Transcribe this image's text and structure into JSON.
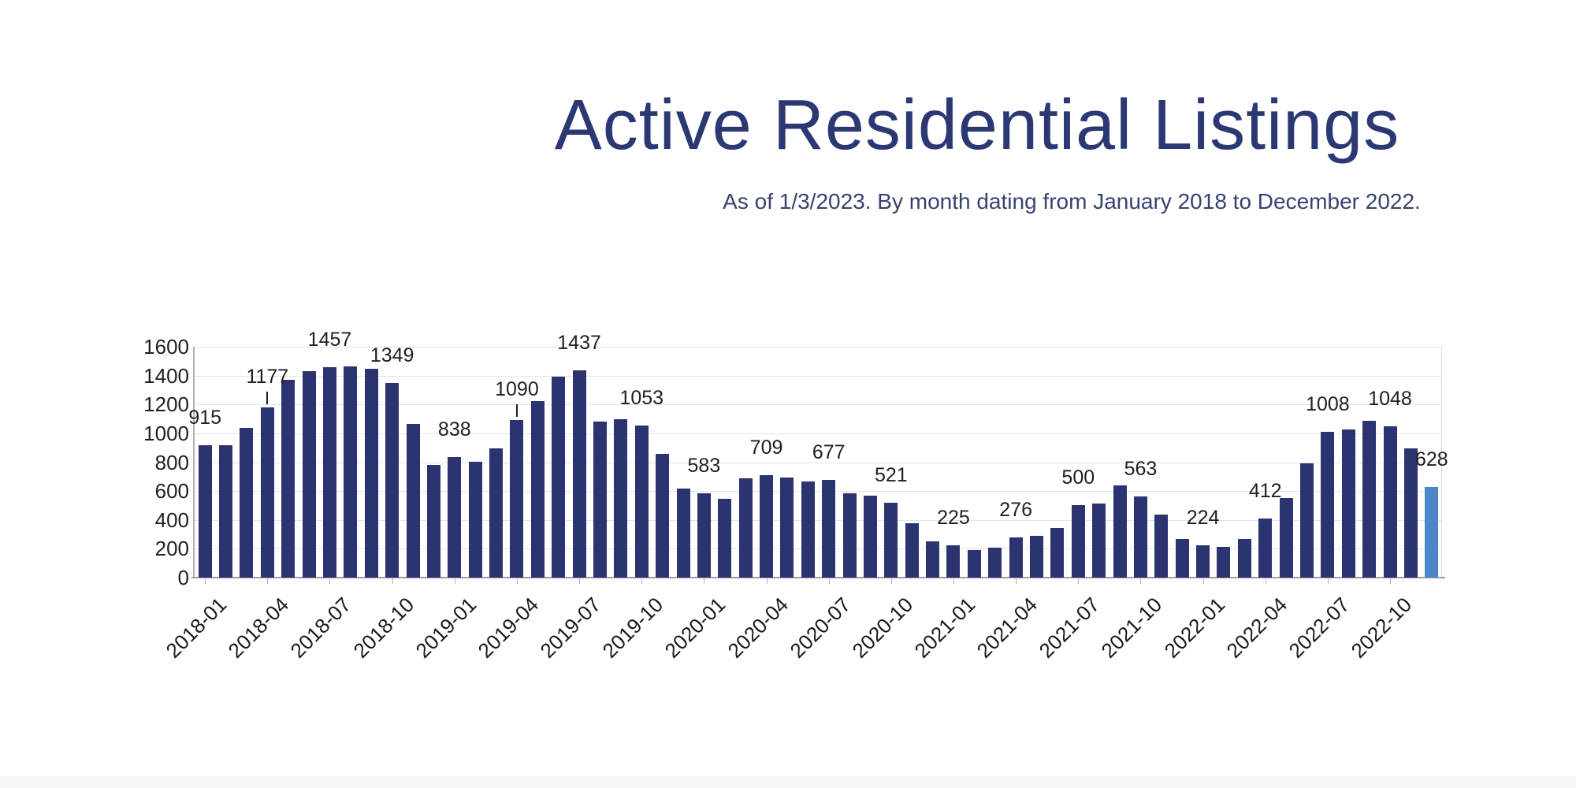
{
  "title": "Active Residential Listings",
  "subtitle": "As of 1/3/2023. By month dating from January 2018 to December 2022.",
  "chart_data": {
    "type": "bar",
    "x": [
      "2018-01",
      "2018-02",
      "2018-03",
      "2018-04",
      "2018-05",
      "2018-06",
      "2018-07",
      "2018-08",
      "2018-09",
      "2018-10",
      "2018-11",
      "2018-12",
      "2019-01",
      "2019-02",
      "2019-03",
      "2019-04",
      "2019-05",
      "2019-06",
      "2019-07",
      "2019-08",
      "2019-09",
      "2019-10",
      "2019-11",
      "2019-12",
      "2020-01",
      "2020-02",
      "2020-03",
      "2020-04",
      "2020-05",
      "2020-06",
      "2020-07",
      "2020-08",
      "2020-09",
      "2020-10",
      "2020-11",
      "2020-12",
      "2021-01",
      "2021-02",
      "2021-03",
      "2021-04",
      "2021-05",
      "2021-06",
      "2021-07",
      "2021-08",
      "2021-09",
      "2021-10",
      "2021-11",
      "2021-12",
      "2022-01",
      "2022-02",
      "2022-03",
      "2022-04",
      "2022-05",
      "2022-06",
      "2022-07",
      "2022-08",
      "2022-09",
      "2022-10",
      "2022-11",
      "2022-12"
    ],
    "values": [
      915,
      915,
      1040,
      1177,
      1370,
      1430,
      1457,
      1465,
      1445,
      1349,
      1065,
      780,
      838,
      805,
      895,
      1090,
      1225,
      1390,
      1437,
      1080,
      1100,
      1053,
      855,
      615,
      583,
      545,
      690,
      709,
      695,
      665,
      677,
      585,
      570,
      521,
      375,
      250,
      225,
      190,
      210,
      276,
      290,
      345,
      500,
      515,
      640,
      563,
      435,
      270,
      224,
      215,
      270,
      412,
      550,
      790,
      1008,
      1025,
      1085,
      1048,
      895,
      628
    ],
    "labeled_months": [
      "2018-01",
      "2018-04",
      "2018-07",
      "2018-10",
      "2019-01",
      "2019-04",
      "2019-07",
      "2019-10",
      "2020-01",
      "2020-04",
      "2020-07",
      "2020-10",
      "2021-01",
      "2021-04",
      "2021-07",
      "2021-10",
      "2022-01",
      "2022-04",
      "2022-07",
      "2022-10",
      "2022-12"
    ],
    "data_labels": {
      "2018-01": "915",
      "2018-04": "1177",
      "2018-07": "1457",
      "2018-10": "1349",
      "2019-01": "838",
      "2019-04": "1090",
      "2019-07": "1437",
      "2019-10": "1053",
      "2020-01": "583",
      "2020-04": "709",
      "2020-07": "677",
      "2020-10": "521",
      "2021-01": "225",
      "2021-04": "276",
      "2021-07": "500",
      "2021-10": "563",
      "2022-01": "224",
      "2022-04": "412",
      "2022-07": "1008",
      "2022-10": "1048",
      "2022-12": "628"
    },
    "leader_line_months": [
      "2018-04",
      "2019-04"
    ],
    "x_tick_labels": [
      "2018-01",
      "2018-04",
      "2018-07",
      "2018-10",
      "2019-01",
      "2019-04",
      "2019-07",
      "2019-10",
      "2020-01",
      "2020-04",
      "2020-07",
      "2020-10",
      "2021-01",
      "2021-04",
      "2021-07",
      "2021-10",
      "2022-01",
      "2022-04",
      "2022-07",
      "2022-10"
    ],
    "y_tick_labels": [
      "0",
      "200",
      "400",
      "600",
      "800",
      "1000",
      "1200",
      "1400",
      "1600"
    ],
    "ylim": [
      0,
      1600
    ],
    "grid": true,
    "legend": "none",
    "bar_color": "#2b3470",
    "highlight_color": "#4a86c8",
    "highlight_month": "2022-12",
    "title": "Active Residential Listings",
    "xlabel": "",
    "ylabel": ""
  }
}
